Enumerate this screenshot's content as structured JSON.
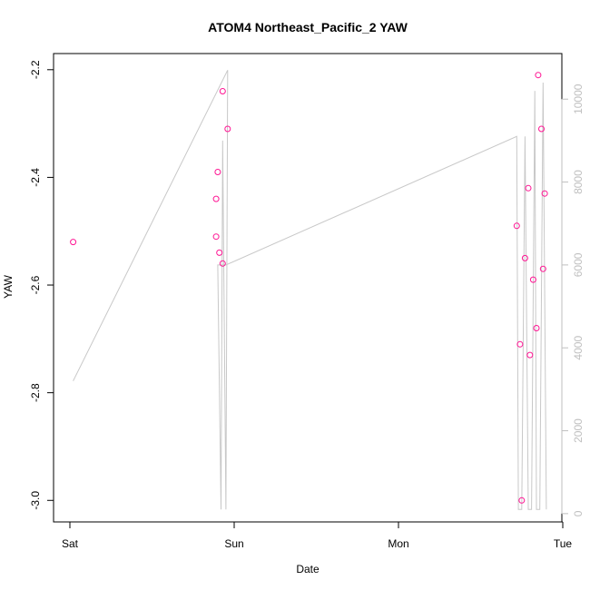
{
  "chart_data": {
    "type": "scatter",
    "title": "ATOM4 Northeast_Pacific_2 YAW",
    "xlabel": "Date",
    "ylabel": "YAW",
    "x_ticks": [
      "Sat",
      "Sun",
      "Mon",
      "Tue"
    ],
    "xlim_days": [
      0,
      3
    ],
    "ylim": [
      -3.04,
      -2.17
    ],
    "y_ticks": [
      "-3.0",
      "-2.8",
      "-2.6",
      "-2.4",
      "-2.2"
    ],
    "y_tick_values": [
      -3.0,
      -2.8,
      -2.6,
      -2.4,
      -2.2
    ],
    "y2_ticks": [
      "0",
      "2000",
      "4000",
      "6000",
      "8000",
      "10000"
    ],
    "y2_tick_values": [
      0,
      2000,
      4000,
      6000,
      8000,
      10000
    ],
    "y2lim": [
      -200,
      11100
    ],
    "grid": false,
    "colors": {
      "points": "#ff1493",
      "line": "#c8c8c8",
      "axis": "#000000",
      "right_axis": "#bfbfbf"
    },
    "series": [
      {
        "values": [
          {
            "x": 0.02,
            "y": -2.52
          },
          {
            "x": 0.89,
            "y": -2.44
          },
          {
            "x": 0.89,
            "y": -2.51
          },
          {
            "x": 0.9,
            "y": -2.39
          },
          {
            "x": 0.91,
            "y": -2.54
          },
          {
            "x": 0.93,
            "y": -2.56
          },
          {
            "x": 0.93,
            "y": -2.24
          },
          {
            "x": 0.96,
            "y": -2.31
          },
          {
            "x": 2.72,
            "y": -2.49
          },
          {
            "x": 2.74,
            "y": -2.71
          },
          {
            "x": 2.75,
            "y": -3.0
          },
          {
            "x": 2.77,
            "y": -2.55
          },
          {
            "x": 2.79,
            "y": -2.42
          },
          {
            "x": 2.8,
            "y": -2.73
          },
          {
            "x": 2.82,
            "y": -2.59
          },
          {
            "x": 2.84,
            "y": -2.68
          },
          {
            "x": 2.85,
            "y": -2.21
          },
          {
            "x": 2.87,
            "y": -2.31
          },
          {
            "x": 2.88,
            "y": -2.57
          },
          {
            "x": 2.89,
            "y": -2.43
          }
        ]
      },
      {
        "axis": "right",
        "values": [
          {
            "x": 0.02,
            "y": 3200
          },
          {
            "x": 0.96,
            "y": 10700
          },
          {
            "x": 0.95,
            "y": 100
          },
          {
            "x": 0.93,
            "y": 9000
          },
          {
            "x": 0.92,
            "y": 100
          },
          {
            "x": 0.9,
            "y": 6000
          },
          {
            "x": 0.95,
            "y": 6000
          },
          {
            "x": 2.72,
            "y": 9100
          },
          {
            "x": 2.73,
            "y": 100
          },
          {
            "x": 2.75,
            "y": 100
          },
          {
            "x": 2.77,
            "y": 9100
          },
          {
            "x": 2.79,
            "y": 100
          },
          {
            "x": 2.81,
            "y": 100
          },
          {
            "x": 2.83,
            "y": 10200
          },
          {
            "x": 2.84,
            "y": 100
          },
          {
            "x": 2.86,
            "y": 100
          },
          {
            "x": 2.88,
            "y": 10400
          },
          {
            "x": 2.9,
            "y": 100
          }
        ]
      }
    ]
  }
}
